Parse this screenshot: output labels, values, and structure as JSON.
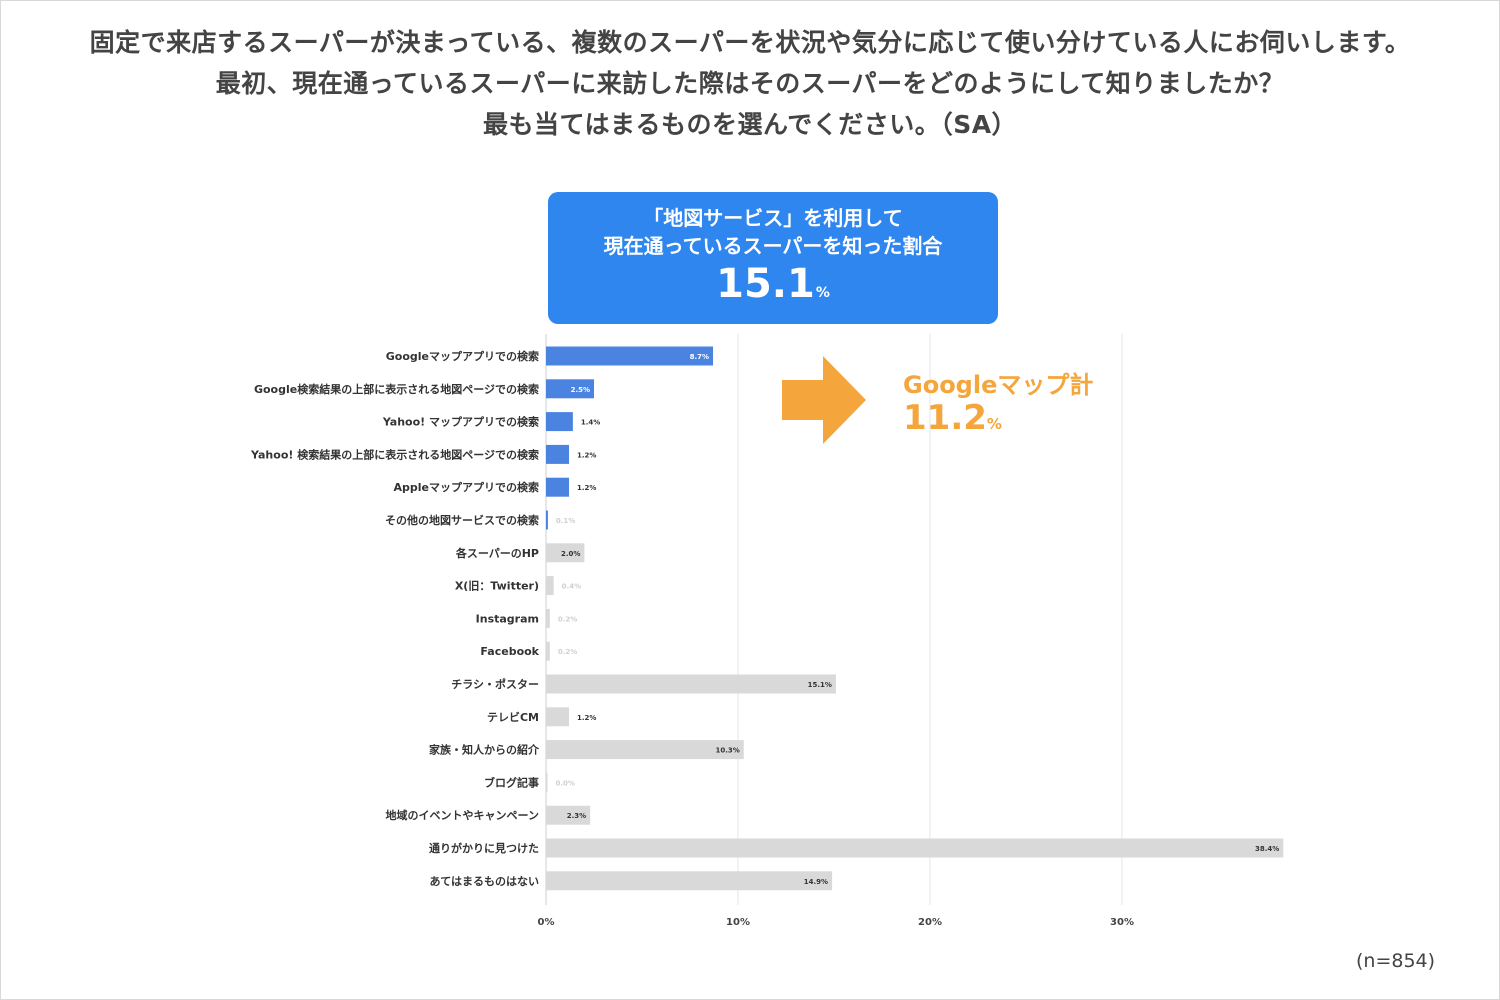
{
  "title_lines": [
    "固定で来店するスーパーが決まっている、複数のスーパーを状況や気分に応じて使い分けている人にお伺いします。",
    "最初、現在通っているスーパーに来訪した際はそのスーパーをどのようにして知りましたか？",
    "最も当てはまるものを選んでください。（SA）"
  ],
  "callout": {
    "line1": "「地図サービス」を利用して",
    "line2": "現在通っているスーパーを知った割合",
    "value": "15.1",
    "unit": "%"
  },
  "annotation": {
    "label": "Googleマップ計",
    "value": "11.2",
    "unit": "%"
  },
  "sample_size": "(n=854)",
  "colors": {
    "map_bar": "#4a83e0",
    "other_bar": "#d9d9d9",
    "callout_bg": "#2f86ef",
    "accent": "#f4a53b",
    "grid": "#e5e5e5"
  },
  "chart_data": {
    "type": "bar",
    "orientation": "horizontal",
    "categories": [
      "Googleマップアプリでの検索",
      "Google検索結果の上部に表示される地図ページでの検索",
      "Yahoo! マップアプリでの検索",
      "Yahoo! 検索結果の上部に表示される地図ページでの検索",
      "Appleマップアプリでの検索",
      "その他の地図サービスでの検索",
      "各スーパーのHP",
      "X(旧：Twitter)",
      "Instagram",
      "Facebook",
      "チラシ・ポスター",
      "テレビCM",
      "家族・知人からの紹介",
      "ブログ記事",
      "地域のイベントやキャンペーン",
      "通りがかりに見つけた",
      "あてはまるものはない"
    ],
    "values": [
      8.7,
      2.5,
      1.4,
      1.2,
      1.2,
      0.1,
      2.0,
      0.4,
      0.2,
      0.2,
      15.1,
      1.2,
      10.3,
      0.0,
      2.3,
      38.4,
      14.9
    ],
    "value_labels": [
      "8.7%",
      "2.5%",
      "1.4%",
      "1.2%",
      "1.2%",
      "0.1%",
      "2.0%",
      "0.4%",
      "0.2%",
      "0.2%",
      "15.1%",
      "1.2%",
      "10.3%",
      "0.0%",
      "2.3%",
      "38.4%",
      "14.9%"
    ],
    "map_service_flags": [
      true,
      true,
      true,
      true,
      true,
      true,
      false,
      false,
      false,
      false,
      false,
      false,
      false,
      false,
      false,
      false,
      false
    ],
    "x_ticks": [
      0,
      10,
      20,
      30
    ],
    "x_tick_labels": [
      "0%",
      "10%",
      "20%",
      "30%"
    ],
    "xlim": [
      0,
      40
    ],
    "grid": true
  }
}
